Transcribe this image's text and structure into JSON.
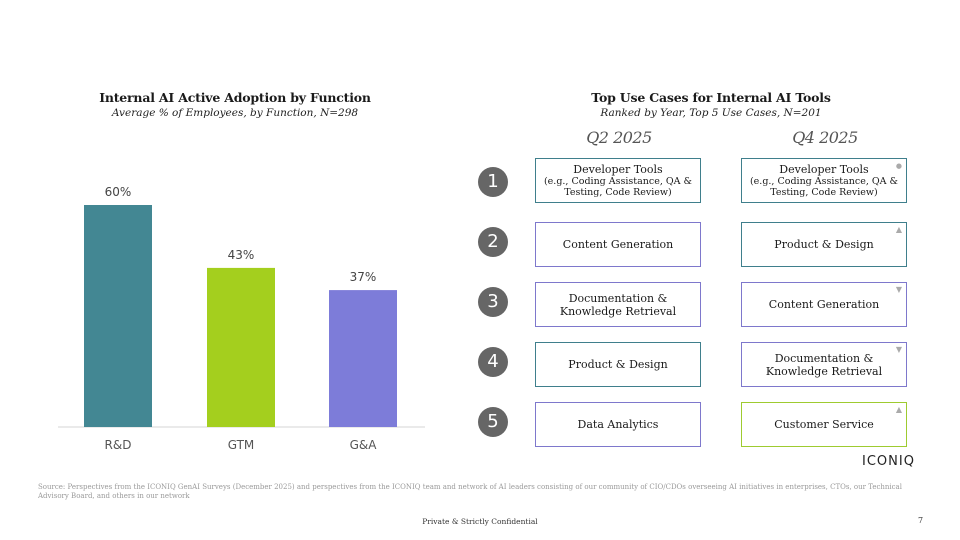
{
  "left_chart": {
    "title": "Internal AI Active Adoption by Function",
    "subtitle": "Average % of Employees, by Function, N=298"
  },
  "chart_data": {
    "type": "bar",
    "title": "Internal AI Active Adoption by Function",
    "subtitle": "Average % of Employees, by Function, N=298",
    "categories": [
      "R&D",
      "GTM",
      "G&A"
    ],
    "values": [
      60,
      43,
      37
    ],
    "labels": [
      "60%",
      "43%",
      "37%"
    ],
    "colors": [
      "#438793",
      "#a4cf1e",
      "#7d7cd9"
    ],
    "xlabel": "",
    "ylabel": "",
    "ylim": [
      0,
      60
    ],
    "grid": false
  },
  "use_cases": {
    "title": "Top Use Cases for Internal AI Tools",
    "subtitle": "Ranked by Year, Top 5 Use Cases, N=201",
    "col_q2": "Q2 2025",
    "col_q4": "Q4 2025",
    "ranks": [
      "1",
      "2",
      "3",
      "4",
      "5"
    ],
    "q2": [
      {
        "label": "Developer Tools",
        "detail": "(e.g., Coding Assistance, QA & Testing, Code Review)",
        "color": "#3f7f8c"
      },
      {
        "label": "Content Generation",
        "color": "#7e78cc"
      },
      {
        "label": "Documentation & Knowledge Retrieval",
        "color": "#7e78cc"
      },
      {
        "label": "Product & Design",
        "color": "#3f7f8c"
      },
      {
        "label": "Data Analytics",
        "color": "#7e78cc"
      }
    ],
    "q4": [
      {
        "label": "Developer Tools",
        "detail": "(e.g., Coding Assistance, QA & Testing, Code Review)",
        "change": "●",
        "color": "#3f7f8c"
      },
      {
        "label": "Product & Design",
        "change": "▲",
        "color": "#3f7f8c"
      },
      {
        "label": "Content Generation",
        "change": "▼",
        "color": "#7e78cc"
      },
      {
        "label": "Documentation & Knowledge Retrieval",
        "change": "▼",
        "color": "#7e78cc"
      },
      {
        "label": "Customer Service",
        "change": "▲",
        "color": "#9ecb30"
      }
    ]
  },
  "logo_text": "ICONIQ",
  "source_text": "Source: Perspectives from the ICONIQ GenAI Surveys (December 2025) and perspectives from the ICONIQ team and network of AI leaders consisting of our community of CIO/CDOs overseeing AI initiatives in enterprises, CTOs, our Technical Advisory Board, and others in our network",
  "footer": "Private & Strictly Confidential",
  "page_number": "7"
}
